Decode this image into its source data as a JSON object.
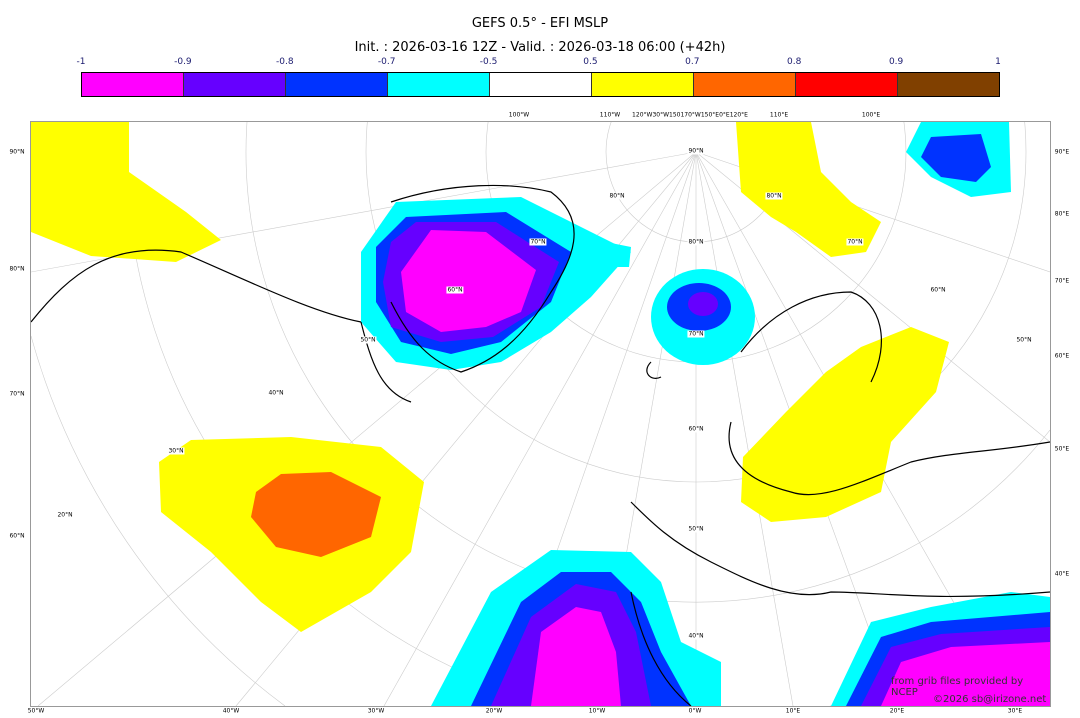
{
  "title": "GEFS 0.5° - EFI MSLP",
  "subtitle": "Init. : 2026-03-16 12Z - Valid. : 2026-03-18 06:00 (+42h)",
  "colorbar": {
    "ticks": [
      "-1",
      "-0.9",
      "-0.8",
      "-0.7",
      "-0.5",
      "0.5",
      "0.7",
      "0.8",
      "0.9",
      "1"
    ],
    "colors": [
      "#ff00ff",
      "#6600ff",
      "#0033ff",
      "#00ffff",
      "#ffffff",
      "#ffff00",
      "#ff6600",
      "#ff0000",
      "#804000"
    ]
  },
  "map": {
    "left_labels": [
      "90°N",
      "80°N",
      "70°N",
      "60°N"
    ],
    "right_labels": [
      "90°E",
      "80°E",
      "70°E",
      "60°E",
      "50°E",
      "40°E"
    ],
    "bottom_labels": [
      "50°W",
      "40°W",
      "30°W",
      "20°W",
      "10°W",
      "0°W",
      "10°E",
      "20°E",
      "30°E"
    ],
    "top_labels": [
      "100°W",
      "110°W",
      "120°W30°W150170°W150°E0°E120°E",
      "110°E",
      "100°E"
    ],
    "inner_labels": [
      "90°N",
      "80°N",
      "70°N",
      "60°N",
      "50°N",
      "40°N",
      "30°N",
      "20°N",
      "80°N",
      "70°N",
      "60°N",
      "50°N",
      "40°N",
      "80°N",
      "70°N",
      "60°N",
      "50°N"
    ]
  },
  "credits": {
    "source": "from grib files provided by NCEP",
    "copyright": "©2026 sb@irizone.net"
  }
}
